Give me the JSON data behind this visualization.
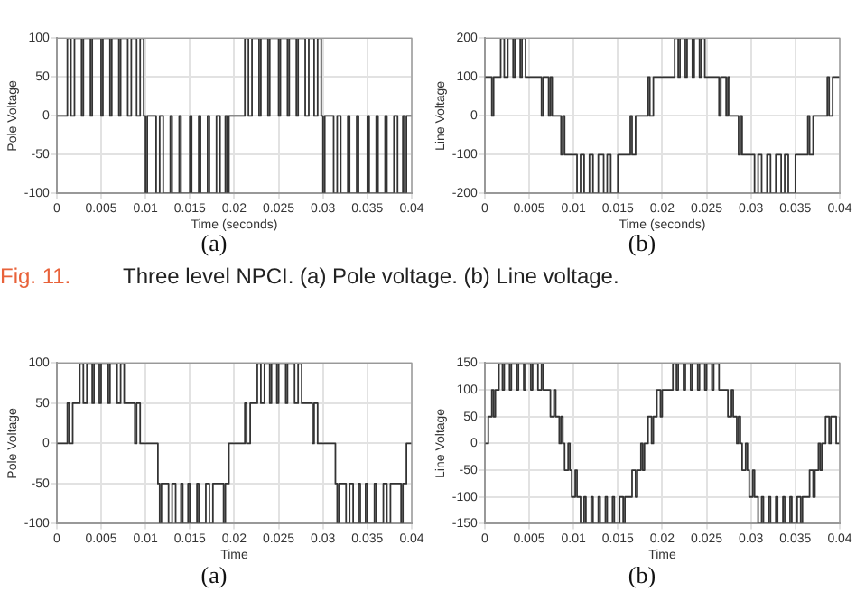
{
  "chart_data": [
    {
      "type": "step",
      "xlabel": "Time (seconds)",
      "ylabel": "Pole Voltage",
      "xlim": [
        0,
        0.04
      ],
      "xticks": [
        0,
        0.005,
        0.01,
        0.015,
        0.02,
        0.025,
        0.03,
        0.035,
        0.04
      ],
      "ylim": [
        -100,
        100
      ],
      "yticks": [
        -100,
        -50,
        0,
        50,
        100
      ],
      "grid": true,
      "annotations": [
        "(a)",
        "Fig. 11.",
        "Three level NPCI. (a) Pole voltage. (b) Line voltage."
      ],
      "series": [
        {
          "color": "#333333",
          "x": [
            0,
            0.0012,
            0.0016,
            0.002,
            0.0028,
            0.003,
            0.0038,
            0.004,
            0.005,
            0.0052,
            0.006,
            0.0062,
            0.007,
            0.0072,
            0.008,
            0.0084,
            0.009,
            0.0094,
            0.0098,
            0.01,
            0.0102,
            0.0112,
            0.0116,
            0.012,
            0.0128,
            0.013,
            0.0138,
            0.014,
            0.015,
            0.0152,
            0.016,
            0.0162,
            0.017,
            0.0172,
            0.018,
            0.0184,
            0.019,
            0.0192,
            0.0194,
            0.0212,
            0.0216,
            0.022,
            0.0228,
            0.023,
            0.0238,
            0.024,
            0.025,
            0.0252,
            0.026,
            0.0262,
            0.027,
            0.0272,
            0.028,
            0.0284,
            0.029,
            0.0294,
            0.0298,
            0.03,
            0.0302,
            0.0312,
            0.0316,
            0.032,
            0.0328,
            0.033,
            0.0338,
            0.034,
            0.035,
            0.0352,
            0.036,
            0.0362,
            0.037,
            0.0372,
            0.038,
            0.0384,
            0.039,
            0.0392,
            0.0394,
            0.04
          ],
          "values": [
            0,
            100,
            0,
            100,
            0,
            100,
            0,
            100,
            0,
            100,
            0,
            100,
            0,
            100,
            0,
            100,
            0,
            100,
            0,
            -100,
            0,
            -100,
            0,
            -100,
            0,
            -100,
            0,
            -100,
            0,
            -100,
            0,
            -100,
            0,
            -100,
            0,
            -100,
            0,
            -100,
            0,
            100,
            0,
            100,
            0,
            100,
            0,
            100,
            0,
            100,
            0,
            100,
            0,
            100,
            0,
            100,
            0,
            100,
            0,
            -100,
            0,
            -100,
            0,
            -100,
            0,
            -100,
            0,
            -100,
            0,
            -100,
            0,
            -100,
            0,
            -100,
            0,
            -100,
            0,
            -100,
            0,
            0
          ]
        }
      ]
    },
    {
      "type": "step",
      "xlabel": "Time (seconds)",
      "ylabel": "Line Voltage",
      "xlim": [
        0,
        0.04
      ],
      "xticks": [
        0,
        0.005,
        0.01,
        0.015,
        0.02,
        0.025,
        0.03,
        0.035,
        0.04
      ],
      "ylim": [
        -200,
        200
      ],
      "yticks": [
        -200,
        -100,
        0,
        100,
        200
      ],
      "grid": true,
      "annotations": [
        "(b)"
      ],
      "series": [
        {
          "color": "#333333",
          "x": [
            0,
            0.0008,
            0.001,
            0.0018,
            0.0022,
            0.0026,
            0.0032,
            0.0034,
            0.004,
            0.0042,
            0.0046,
            0.0064,
            0.0066,
            0.0072,
            0.0074,
            0.0076,
            0.0086,
            0.0088,
            0.009,
            0.0104,
            0.0108,
            0.0112,
            0.0118,
            0.0122,
            0.0128,
            0.0134,
            0.0138,
            0.0142,
            0.015,
            0.0164,
            0.0166,
            0.017,
            0.0184,
            0.0186,
            0.019,
            0.0214,
            0.0218,
            0.022,
            0.0226,
            0.0228,
            0.0234,
            0.0236,
            0.0242,
            0.0244,
            0.0248,
            0.0264,
            0.0266,
            0.0272,
            0.0274,
            0.0276,
            0.0286,
            0.0288,
            0.029,
            0.0304,
            0.0308,
            0.0312,
            0.0318,
            0.0322,
            0.0328,
            0.0334,
            0.0338,
            0.0342,
            0.035,
            0.0364,
            0.0366,
            0.037,
            0.0386,
            0.0388,
            0.0392,
            0.04
          ],
          "values": [
            100,
            0,
            100,
            200,
            100,
            200,
            100,
            200,
            100,
            200,
            100,
            0,
            100,
            0,
            100,
            0,
            -100,
            0,
            -100,
            -200,
            -100,
            -200,
            -100,
            -200,
            -100,
            -200,
            -100,
            -200,
            -100,
            0,
            -100,
            0,
            100,
            0,
            100,
            200,
            100,
            200,
            100,
            200,
            100,
            200,
            100,
            200,
            100,
            0,
            100,
            0,
            100,
            0,
            -100,
            0,
            -100,
            -200,
            -100,
            -200,
            -100,
            -200,
            -100,
            -200,
            -100,
            -200,
            -100,
            0,
            -100,
            0,
            100,
            0,
            100,
            100
          ]
        }
      ]
    },
    {
      "type": "step",
      "xlabel": "Time",
      "ylabel": "Pole Voltage",
      "xlim": [
        0,
        0.04
      ],
      "xticks": [
        0,
        0.005,
        0.01,
        0.015,
        0.02,
        0.025,
        0.03,
        0.035,
        0.04
      ],
      "ylim": [
        -100,
        100
      ],
      "yticks": [
        -100,
        -50,
        0,
        50,
        100
      ],
      "grid": true,
      "annotations": [
        "(a)"
      ],
      "series": [
        {
          "color": "#333333",
          "x": [
            0,
            0.0012,
            0.0014,
            0.0018,
            0.0026,
            0.003,
            0.0034,
            0.004,
            0.0042,
            0.0048,
            0.005,
            0.0058,
            0.006,
            0.0068,
            0.0072,
            0.0076,
            0.0088,
            0.009,
            0.0094,
            0.0114,
            0.0116,
            0.0118,
            0.0126,
            0.013,
            0.0134,
            0.014,
            0.0142,
            0.0148,
            0.015,
            0.0158,
            0.016,
            0.0168,
            0.0172,
            0.0176,
            0.0188,
            0.019,
            0.0194,
            0.0212,
            0.0214,
            0.0218,
            0.0226,
            0.023,
            0.0234,
            0.024,
            0.0242,
            0.0248,
            0.025,
            0.0258,
            0.026,
            0.0268,
            0.0272,
            0.0276,
            0.0288,
            0.029,
            0.0294,
            0.0314,
            0.0316,
            0.0318,
            0.0326,
            0.033,
            0.0334,
            0.034,
            0.0342,
            0.0348,
            0.035,
            0.0358,
            0.036,
            0.0368,
            0.0372,
            0.0376,
            0.0388,
            0.039,
            0.0394,
            0.04
          ],
          "values": [
            0,
            50,
            0,
            50,
            100,
            50,
            100,
            50,
            100,
            50,
            100,
            50,
            100,
            50,
            100,
            50,
            0,
            50,
            0,
            -50,
            -100,
            -50,
            -100,
            -50,
            -100,
            -50,
            -100,
            -50,
            -100,
            -50,
            -100,
            -50,
            -100,
            -50,
            -100,
            -50,
            0,
            50,
            0,
            50,
            100,
            50,
            100,
            50,
            100,
            50,
            100,
            50,
            100,
            50,
            100,
            50,
            0,
            50,
            0,
            -50,
            -100,
            -50,
            -100,
            -50,
            -100,
            -50,
            -100,
            -50,
            -100,
            -50,
            -100,
            -50,
            -100,
            -50,
            -100,
            -50,
            0,
            0
          ]
        }
      ]
    },
    {
      "type": "step",
      "xlabel": "Time",
      "ylabel": "Line Voltage",
      "xlim": [
        0,
        0.04
      ],
      "xticks": [
        0,
        0.005,
        0.01,
        0.015,
        0.02,
        0.025,
        0.03,
        0.035,
        0.04
      ],
      "ylim": [
        -150,
        150
      ],
      "yticks": [
        -150,
        -100,
        -50,
        0,
        50,
        100,
        150
      ],
      "grid": true,
      "annotations": [
        "(b)"
      ],
      "series": [
        {
          "color": "#333333",
          "x": [
            0,
            0.0004,
            0.0008,
            0.001,
            0.0012,
            0.0016,
            0.002,
            0.0022,
            0.0028,
            0.003,
            0.0036,
            0.0038,
            0.0044,
            0.0046,
            0.0052,
            0.0054,
            0.006,
            0.0064,
            0.0066,
            0.0074,
            0.0078,
            0.008,
            0.0084,
            0.0086,
            0.0088,
            0.009,
            0.0094,
            0.0096,
            0.0098,
            0.0102,
            0.0104,
            0.0108,
            0.0112,
            0.0114,
            0.012,
            0.0122,
            0.0128,
            0.013,
            0.0136,
            0.0138,
            0.0144,
            0.0146,
            0.0152,
            0.0156,
            0.0158,
            0.0166,
            0.017,
            0.0172,
            0.0176,
            0.0178,
            0.018,
            0.0184,
            0.0188,
            0.019,
            0.0194,
            0.0198,
            0.02,
            0.0212,
            0.0216,
            0.0218,
            0.0224,
            0.0226,
            0.0232,
            0.0234,
            0.024,
            0.0242,
            0.0248,
            0.025,
            0.0256,
            0.0258,
            0.0264,
            0.0274,
            0.0278,
            0.028,
            0.0284,
            0.0286,
            0.0288,
            0.029,
            0.0294,
            0.0296,
            0.0298,
            0.0302,
            0.0304,
            0.0308,
            0.0312,
            0.0314,
            0.032,
            0.0322,
            0.0328,
            0.033,
            0.0336,
            0.0338,
            0.0344,
            0.0346,
            0.0352,
            0.0356,
            0.0358,
            0.0366,
            0.037,
            0.0372,
            0.0376,
            0.0378,
            0.038,
            0.0384,
            0.0388,
            0.039,
            0.0396,
            0.04
          ],
          "values": [
            0,
            50,
            100,
            50,
            100,
            150,
            100,
            150,
            100,
            150,
            100,
            150,
            100,
            150,
            100,
            150,
            100,
            150,
            100,
            50,
            100,
            50,
            0,
            50,
            0,
            -50,
            0,
            -50,
            -100,
            -50,
            -100,
            -150,
            -100,
            -150,
            -100,
            -150,
            -100,
            -150,
            -100,
            -150,
            -100,
            -150,
            -100,
            -150,
            -100,
            -50,
            -100,
            -50,
            0,
            -50,
            0,
            50,
            0,
            50,
            100,
            50,
            100,
            150,
            100,
            150,
            100,
            150,
            100,
            150,
            100,
            150,
            100,
            150,
            100,
            150,
            100,
            50,
            100,
            50,
            0,
            50,
            0,
            -50,
            0,
            -50,
            -100,
            -50,
            -100,
            -150,
            -100,
            -150,
            -100,
            -150,
            -100,
            -150,
            -100,
            -150,
            -100,
            -150,
            -100,
            -150,
            -100,
            -50,
            -100,
            -50,
            0,
            -50,
            0,
            50,
            0,
            50,
            0,
            50
          ]
        }
      ]
    }
  ]
}
